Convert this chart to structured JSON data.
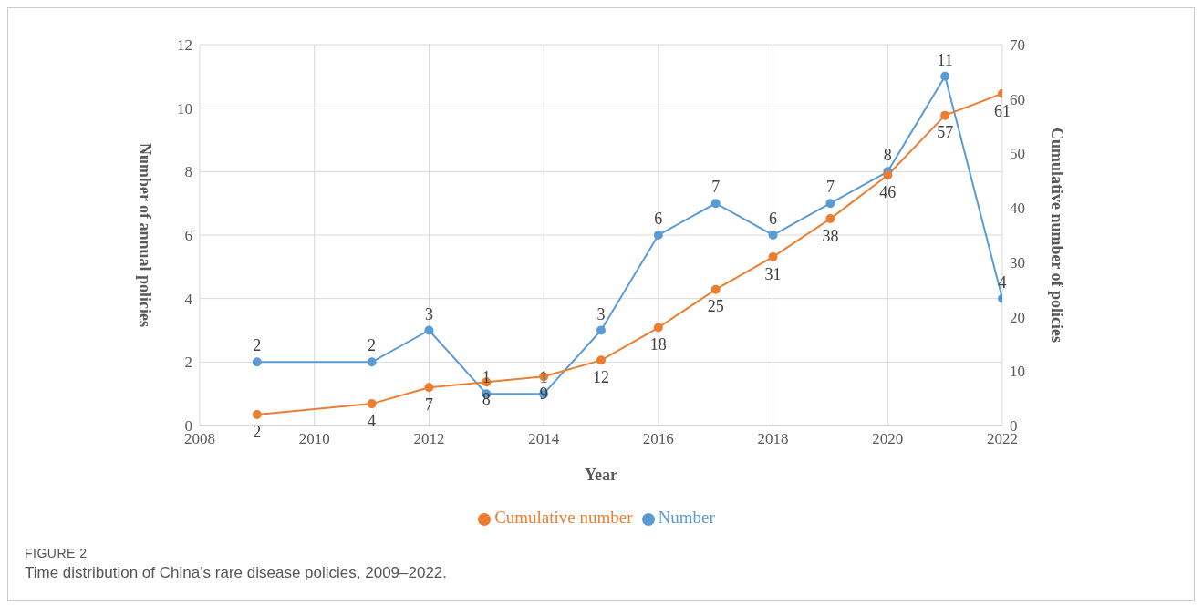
{
  "chart_data": {
    "type": "line",
    "xlabel": "Year",
    "ylabel": "Number of annual policies",
    "y2label": "Cumulative number of policies",
    "x": [
      2009,
      2011,
      2012,
      2013,
      2014,
      2015,
      2016,
      2017,
      2018,
      2019,
      2020,
      2021,
      2022
    ],
    "series": [
      {
        "name": "Number",
        "color": "#5b9bd5",
        "values": [
          2,
          2,
          3,
          1,
          1,
          3,
          6,
          7,
          6,
          7,
          8,
          11,
          4
        ]
      },
      {
        "name": "Cumulative number",
        "color": "#ed7d31",
        "axis": "y2",
        "values": [
          2,
          4,
          7,
          8,
          9,
          12,
          18,
          25,
          31,
          38,
          46,
          57,
          61
        ]
      }
    ],
    "xlim": [
      2008,
      2022
    ],
    "xticks": [
      2008,
      2010,
      2012,
      2014,
      2016,
      2018,
      2020,
      2022
    ],
    "ylim": [
      0,
      12
    ],
    "yticks": [
      0,
      2,
      4,
      6,
      8,
      10,
      12
    ],
    "y2lim": [
      0,
      70
    ],
    "y2ticks": [
      0,
      10,
      20,
      30,
      40,
      50,
      60,
      70
    ],
    "grid": true,
    "legend": "bottom",
    "marker": "circle",
    "line_style": "solid",
    "data_labels": true,
    "annotations": [
      "FIGURE 2",
      "Time distribution of China’s rare disease policies, 2009–2022."
    ]
  }
}
